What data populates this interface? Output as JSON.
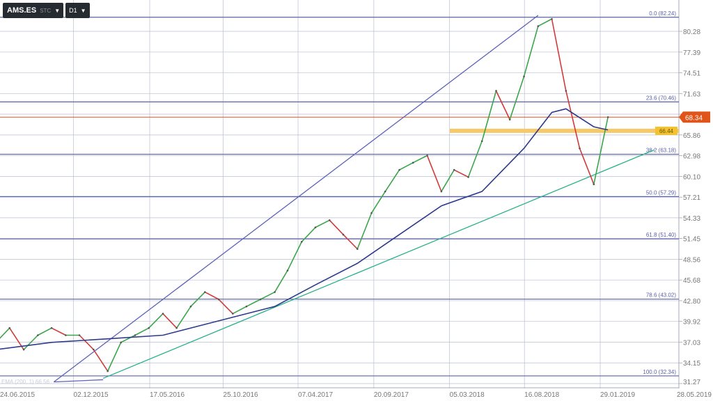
{
  "toolbar": {
    "symbol": "AMS.ES",
    "symbol_sub": "STC",
    "timeframe": "D1"
  },
  "indicator_label": "EMA (200, 1) 66.56",
  "colors": {
    "price_up": "#3aa64a",
    "price_down": "#d23a3a",
    "ema": "#2e3a8c",
    "channel": "#5d62b8",
    "support": "#27b08a",
    "fib": "#5b62a6",
    "current_price": "#e0541a",
    "zone": "#f5c969",
    "grid": "#b9bfd0"
  },
  "chart_data": {
    "type": "line",
    "title": "",
    "y_ticks": [
      80.28,
      77.39,
      74.51,
      71.63,
      68.75,
      65.86,
      62.98,
      60.1,
      57.21,
      54.33,
      51.45,
      48.56,
      45.68,
      42.8,
      39.92,
      37.03,
      34.15,
      31.27
    ],
    "y_tick_labels": [
      "80.28",
      "77.39",
      "74.51",
      "71.63",
      "",
      "65.86",
      "62.98",
      "60.10",
      "57.21",
      "54.33",
      "51.45",
      "48.56",
      "45.68",
      "42.80",
      "39.92",
      "37.03",
      "34.15",
      "31.27"
    ],
    "x_ticks": [
      "2015-06-24",
      "2015-12-02",
      "2016-05-17",
      "2016-10-25",
      "2017-04-07",
      "2017-09-20",
      "2018-03-05",
      "2018-08-16",
      "2019-01-29",
      "2019-05-28"
    ],
    "x_tick_labels": [
      "24.06.2015",
      "02.12.2015",
      "17.05.2016",
      "25.10.2016",
      "07.04.2017",
      "20.09.2017",
      "05.03.2018",
      "16.08.2018",
      "29.01.2019",
      "28.05.2019"
    ],
    "price": {
      "dates": [
        "2015-06",
        "2015-07",
        "2015-08",
        "2015-09",
        "2015-10",
        "2015-11",
        "2015-12",
        "2016-01",
        "2016-02",
        "2016-03",
        "2016-04",
        "2016-05",
        "2016-06",
        "2016-07",
        "2016-08",
        "2016-09",
        "2016-10",
        "2016-11",
        "2016-12",
        "2017-01",
        "2017-02",
        "2017-03",
        "2017-04",
        "2017-05",
        "2017-06",
        "2017-07",
        "2017-08",
        "2017-09",
        "2017-10",
        "2017-11",
        "2017-12",
        "2018-01",
        "2018-02",
        "2018-03",
        "2018-04",
        "2018-05",
        "2018-06",
        "2018-07",
        "2018-08",
        "2018-09",
        "2018-10",
        "2018-11",
        "2018-12",
        "2019-01",
        "2019-02"
      ],
      "values": [
        37,
        39,
        36,
        38,
        39,
        38,
        38,
        36,
        33,
        37,
        38,
        39,
        41,
        39,
        42,
        44,
        43,
        41,
        42,
        43,
        44,
        47,
        51,
        53,
        54,
        52,
        50,
        55,
        58,
        61,
        62,
        63,
        58,
        61,
        60,
        65,
        72,
        68,
        74,
        81,
        82,
        72,
        64,
        59,
        68.34
      ]
    },
    "ema": {
      "name": "EMA (200, 1)",
      "dates": [
        "2015-06",
        "2015-10",
        "2016-02",
        "2016-06",
        "2016-10",
        "2017-02",
        "2017-05",
        "2017-08",
        "2017-11",
        "2018-02",
        "2018-05",
        "2018-08",
        "2018-10",
        "2018-11",
        "2019-01",
        "2019-02"
      ],
      "values": [
        36,
        37,
        37.5,
        38,
        40,
        42,
        45,
        48,
        52,
        56,
        58,
        64,
        69,
        69.5,
        67,
        66.56
      ]
    },
    "channel_line": {
      "from": [
        "2015-10-20",
        31.5
      ],
      "to": [
        "2018-09-15",
        82.5
      ]
    },
    "support_line": {
      "from": [
        "2016-02-05",
        32.0
      ],
      "to": [
        "2019-05-28",
        63.8
      ]
    },
    "fib_levels": [
      {
        "label": "0.0 (82.24)",
        "value": 82.24
      },
      {
        "label": "23.6 (70.46)",
        "value": 70.46
      },
      {
        "label": "38.2 (63.18)",
        "value": 63.18
      },
      {
        "label": "50.0 (57.29)",
        "value": 57.29
      },
      {
        "label": "61.8 (51.40)",
        "value": 51.4
      },
      {
        "label": "78.6 (43.02)",
        "value": 43.02
      },
      {
        "label": "100.0 (32.34)",
        "value": 32.34
      }
    ],
    "current_price": {
      "label": "68.34",
      "value": 68.34
    },
    "zone": {
      "label": "66.44",
      "value": 66.44,
      "from": "2018-03-05"
    },
    "ylim": [
      31.27,
      82.24
    ],
    "grid": true
  }
}
